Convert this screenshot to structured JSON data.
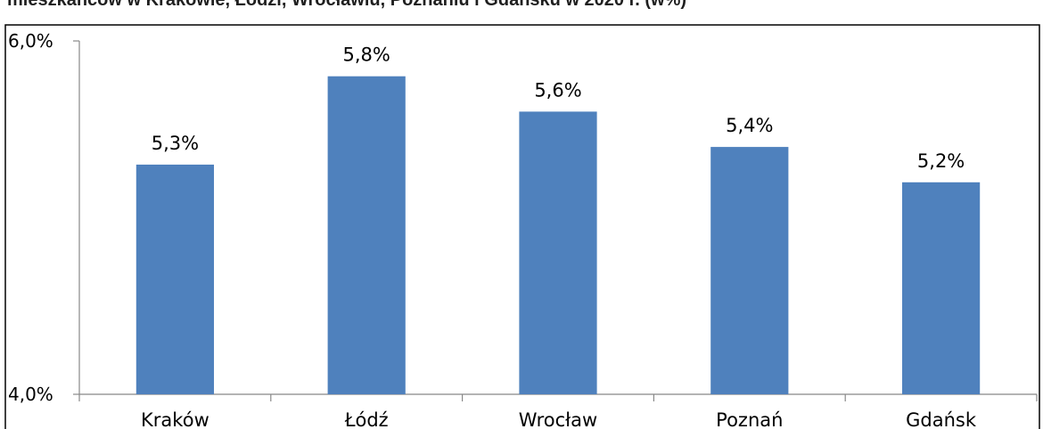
{
  "chart_data": {
    "type": "bar",
    "title": "mieszkańców w Krakowie, Łodzi, Wrocławiu, Poznaniu i Gdańsku w 2020 r. (w%)",
    "categories": [
      "Kraków",
      "Łódź",
      "Wrocław",
      "Poznań",
      "Gdańsk"
    ],
    "values": [
      5.3,
      5.8,
      5.6,
      5.4,
      5.2
    ],
    "value_labels": [
      "5,3%",
      "5,8%",
      "5,6%",
      "5,4%",
      "5,2%"
    ],
    "ylim": [
      4.0,
      6.0
    ],
    "y_ticks": [
      {
        "value": 6.0,
        "label": "6,0%"
      },
      {
        "value": 4.0,
        "label": "4,0%"
      }
    ],
    "xlabel": "",
    "ylabel": "",
    "grid": false,
    "legend": "none",
    "bar_color": "#4f81bd",
    "axis_color": "#888888"
  }
}
